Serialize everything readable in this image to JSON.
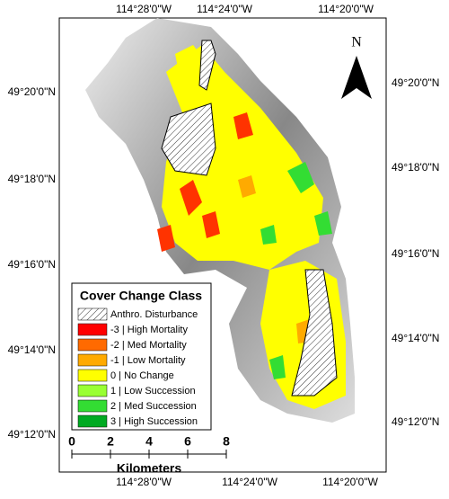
{
  "top_labels": [
    "114°28'0\"W",
    "114°24'0\"W",
    "114°20'0\"W"
  ],
  "bottom_labels": [
    "114°28'0\"W",
    "114°24'0\"W",
    "114°20'0\"W"
  ],
  "left_labels": [
    "49°20'0\"N",
    "49°18'0\"N",
    "49°16'0\"N",
    "49°14'0\"N",
    "49°12'0\"N"
  ],
  "right_labels": [
    "49°20'0\"N",
    "49°18'0\"N",
    "49°16'0\"N",
    "49°14'0\"N",
    "49°12'0\"N"
  ],
  "north": "N",
  "legend": {
    "title": "Cover Change Class",
    "items": [
      {
        "label": "Anthro. Disturbance",
        "color": "hatch"
      },
      {
        "label": "-3 | High Mortality",
        "color": "#ff0000"
      },
      {
        "label": "-2 | Med Mortality",
        "color": "#ff6a00"
      },
      {
        "label": "-1 | Low Mortality",
        "color": "#ffaa00"
      },
      {
        "label": "0 | No Change",
        "color": "#ffff00"
      },
      {
        "label": "1 | Low Succession",
        "color": "#99ff33"
      },
      {
        "label": "2 | Med Succession",
        "color": "#33dd33"
      },
      {
        "label": "3 | High Succession",
        "color": "#00aa22"
      }
    ]
  },
  "scale": {
    "ticks": [
      0,
      2,
      4,
      6,
      8
    ],
    "unit": "Kilometers"
  }
}
